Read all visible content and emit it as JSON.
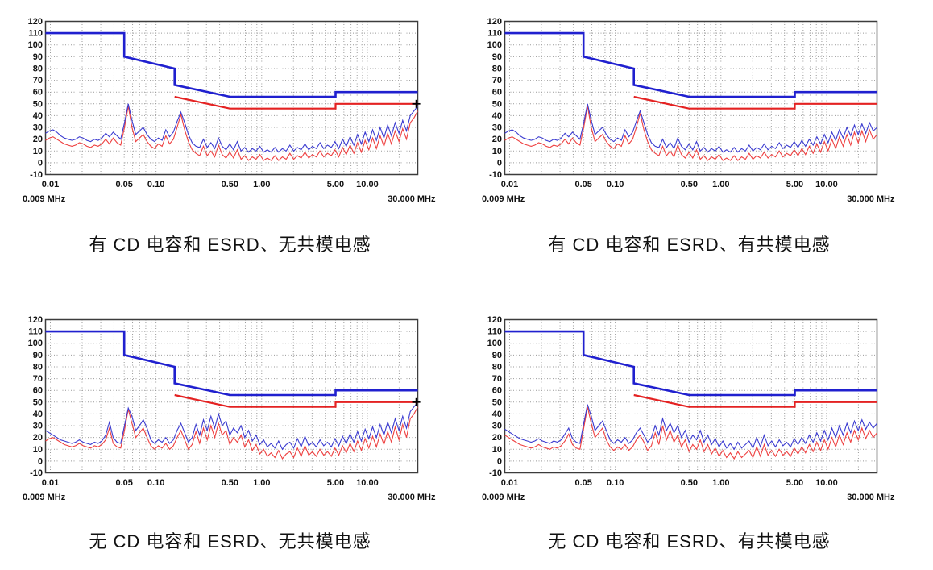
{
  "colors": {
    "limit_blue": "#2020cf",
    "limit_red": "#e42222",
    "trace_blue": "#3b3bd0",
    "trace_red": "#ee4040",
    "grid": "#999999",
    "frame": "#3c3c3c",
    "marker": "#000000",
    "text": "#111111",
    "background": "#ffffff"
  },
  "chart_data": {
    "type": "line",
    "description": "Four conducted EMI spectrum plots (dBuV vs frequency, log scale) comparing CD capacitor / ESRD and common-mode choke configurations",
    "x_axis": {
      "scale": "log",
      "range_mhz": [
        0.009,
        30
      ],
      "left_label": "0.009 MHz",
      "right_label": "30.000 MHz",
      "tick_values": [
        0.01,
        0.05,
        0.1,
        0.5,
        1.0,
        5.0,
        10.0
      ],
      "tick_labels": [
        "0.01",
        "0.05",
        "0.10",
        "0.50",
        "1.00",
        "5.00",
        "10.00"
      ]
    },
    "y_axis": {
      "range_db": [
        -10,
        120
      ],
      "tick_step": 10,
      "tick_labels": [
        "120",
        "110",
        "100",
        "90",
        "80",
        "70",
        "60",
        "50",
        "40",
        "30",
        "20",
        "10",
        "0",
        "-10"
      ]
    },
    "grid": {
      "horizontal_db_lines": [
        0,
        10,
        20,
        30,
        40,
        50,
        60,
        70,
        80,
        90,
        100,
        110
      ],
      "vertical_log_minor": true
    },
    "limit_lines": {
      "quasi_peak": {
        "name": "quasi-peak-limit",
        "color_key": "limit_blue",
        "points_mhz_db": [
          [
            0.009,
            110
          ],
          [
            0.05,
            110
          ],
          [
            0.05,
            90
          ],
          [
            0.15,
            80
          ],
          [
            0.15,
            66
          ],
          [
            0.5,
            56
          ],
          [
            5,
            56
          ],
          [
            5,
            60
          ],
          [
            30,
            60
          ]
        ]
      },
      "average": {
        "name": "average-limit",
        "color_key": "limit_red",
        "points_mhz_db": [
          [
            0.15,
            56
          ],
          [
            0.5,
            46
          ],
          [
            5,
            46
          ],
          [
            5,
            50
          ],
          [
            30,
            50
          ]
        ]
      }
    },
    "trace_sampling": "uniform-log10 over x_axis.range_mhz, 100 samples per trace, values in dB",
    "charts": [
      {
        "id": "top-left",
        "caption": "有 CD 电容和 ESRD、无共模电感",
        "marker": {
          "f_mhz": 29,
          "db": 50,
          "symbol": "+"
        },
        "traces": {
          "peak": {
            "color_key": "trace_blue",
            "samples_db": [
              25,
              27,
              28,
              26,
              23,
              21,
              20,
              19,
              20,
              22,
              21,
              19,
              18,
              20,
              19,
              21,
              25,
              22,
              26,
              23,
              20,
              34,
              50,
              36,
              24,
              27,
              30,
              24,
              20,
              18,
              21,
              19,
              28,
              22,
              26,
              35,
              43,
              34,
              24,
              17,
              14,
              13,
              20,
              13,
              17,
              12,
              21,
              14,
              11,
              16,
              11,
              18,
              10,
              13,
              9,
              12,
              10,
              14,
              9,
              11,
              9,
              13,
              9,
              12,
              10,
              15,
              10,
              13,
              11,
              16,
              11,
              14,
              12,
              17,
              12,
              15,
              13,
              18,
              12,
              20,
              14,
              22,
              15,
              24,
              16,
              26,
              18,
              28,
              19,
              30,
              21,
              32,
              23,
              34,
              25,
              36,
              27,
              40,
              44,
              48
            ]
          },
          "average": {
            "color_key": "trace_red",
            "samples_db": [
              19,
              21,
              22,
              20,
              18,
              16,
              15,
              14,
              15,
              17,
              16,
              14,
              13,
              15,
              14,
              16,
              20,
              16,
              21,
              17,
              15,
              30,
              48,
              30,
              18,
              21,
              24,
              18,
              14,
              12,
              16,
              14,
              23,
              16,
              20,
              30,
              41,
              28,
              18,
              11,
              8,
              6,
              14,
              6,
              10,
              5,
              15,
              7,
              4,
              9,
              4,
              11,
              3,
              6,
              2,
              5,
              3,
              7,
              2,
              4,
              2,
              6,
              2,
              5,
              3,
              8,
              3,
              6,
              4,
              9,
              4,
              7,
              5,
              10,
              5,
              8,
              6,
              11,
              5,
              13,
              7,
              15,
              8,
              17,
              9,
              19,
              11,
              21,
              12,
              23,
              14,
              25,
              16,
              27,
              18,
              29,
              20,
              34,
              38,
              44
            ]
          }
        }
      },
      {
        "id": "top-right",
        "caption": "有 CD 电容和 ESRD、有共模电感",
        "marker": null,
        "traces": {
          "peak": {
            "color_key": "trace_blue",
            "samples_db": [
              25,
              27,
              28,
              26,
              23,
              21,
              20,
              19,
              20,
              22,
              21,
              19,
              18,
              20,
              19,
              21,
              25,
              22,
              26,
              23,
              20,
              34,
              50,
              36,
              24,
              27,
              30,
              24,
              20,
              18,
              21,
              19,
              28,
              22,
              26,
              35,
              44,
              34,
              24,
              17,
              14,
              13,
              20,
              13,
              17,
              12,
              21,
              14,
              11,
              16,
              11,
              18,
              10,
              13,
              9,
              12,
              10,
              14,
              9,
              11,
              9,
              13,
              9,
              12,
              10,
              15,
              10,
              13,
              11,
              16,
              11,
              14,
              12,
              17,
              12,
              15,
              13,
              18,
              13,
              19,
              14,
              20,
              15,
              22,
              16,
              24,
              17,
              26,
              19,
              28,
              21,
              30,
              23,
              32,
              24,
              33,
              25,
              34,
              27,
              30
            ]
          },
          "average": {
            "color_key": "trace_red",
            "samples_db": [
              19,
              21,
              22,
              20,
              18,
              16,
              15,
              14,
              15,
              17,
              16,
              14,
              13,
              15,
              14,
              16,
              20,
              16,
              21,
              17,
              15,
              30,
              48,
              30,
              18,
              21,
              24,
              18,
              14,
              12,
              16,
              14,
              23,
              16,
              20,
              30,
              42,
              28,
              18,
              11,
              8,
              6,
              14,
              6,
              10,
              5,
              15,
              7,
              4,
              9,
              4,
              11,
              3,
              6,
              2,
              5,
              3,
              7,
              2,
              4,
              2,
              6,
              2,
              5,
              3,
              8,
              3,
              6,
              4,
              9,
              4,
              7,
              5,
              10,
              5,
              8,
              6,
              11,
              6,
              12,
              7,
              14,
              8,
              16,
              9,
              18,
              10,
              20,
              12,
              22,
              14,
              24,
              15,
              26,
              17,
              27,
              18,
              28,
              20,
              24
            ]
          }
        }
      },
      {
        "id": "bottom-left",
        "caption": "无 CD 电容和 ESRD、无共模电感",
        "marker": {
          "f_mhz": 29,
          "db": 50,
          "symbol": "+"
        },
        "traces": {
          "peak": {
            "color_key": "trace_blue",
            "samples_db": [
              26,
              24,
              22,
              20,
              18,
              17,
              16,
              15,
              16,
              18,
              16,
              15,
              14,
              16,
              15,
              17,
              22,
              33,
              20,
              16,
              15,
              30,
              45,
              38,
              26,
              30,
              35,
              28,
              18,
              15,
              18,
              16,
              20,
              15,
              18,
              26,
              32,
              24,
              16,
              20,
              31,
              22,
              35,
              26,
              38,
              28,
              40,
              30,
              34,
              22,
              28,
              24,
              30,
              20,
              26,
              17,
              22,
              14,
              18,
              12,
              15,
              11,
              17,
              10,
              14,
              16,
              11,
              19,
              12,
              21,
              13,
              16,
              12,
              18,
              13,
              16,
              12,
              19,
              13,
              21,
              15,
              23,
              16,
              25,
              17,
              27,
              19,
              29,
              20,
              31,
              22,
              33,
              24,
              36,
              26,
              38,
              28,
              42,
              46,
              50
            ]
          },
          "average": {
            "color_key": "trace_red",
            "samples_db": [
              17,
              19,
              20,
              18,
              16,
              14,
              13,
              12,
              13,
              15,
              13,
              12,
              11,
              13,
              12,
              14,
              18,
              28,
              15,
              12,
              11,
              26,
              44,
              32,
              20,
              24,
              28,
              20,
              13,
              10,
              13,
              11,
              15,
              10,
              13,
              20,
              26,
              18,
              10,
              14,
              25,
              15,
              28,
              18,
              30,
              20,
              32,
              22,
              26,
              14,
              20,
              16,
              22,
              12,
              18,
              9,
              14,
              6,
              10,
              4,
              7,
              3,
              9,
              2,
              6,
              8,
              3,
              11,
              4,
              13,
              5,
              8,
              4,
              10,
              5,
              8,
              4,
              11,
              5,
              13,
              7,
              15,
              8,
              17,
              9,
              19,
              11,
              21,
              12,
              23,
              14,
              25,
              16,
              29,
              18,
              31,
              20,
              36,
              40,
              46
            ]
          }
        }
      },
      {
        "id": "bottom-right",
        "caption": "无 CD 电容和 ESRD、有共模电感",
        "marker": null,
        "traces": {
          "peak": {
            "color_key": "trace_blue",
            "samples_db": [
              27,
              25,
              23,
              21,
              19,
              18,
              17,
              16,
              17,
              19,
              17,
              16,
              15,
              17,
              16,
              18,
              23,
              28,
              19,
              16,
              15,
              32,
              48,
              38,
              26,
              30,
              34,
              26,
              18,
              15,
              18,
              16,
              20,
              15,
              18,
              24,
              28,
              22,
              16,
              20,
              30,
              22,
              36,
              26,
              32,
              24,
              30,
              20,
              26,
              16,
              22,
              18,
              26,
              16,
              22,
              14,
              19,
              12,
              17,
              11,
              15,
              10,
              16,
              11,
              14,
              17,
              11,
              20,
              12,
              22,
              13,
              17,
              12,
              18,
              13,
              16,
              12,
              19,
              14,
              20,
              15,
              22,
              16,
              24,
              17,
              26,
              18,
              28,
              20,
              30,
              22,
              32,
              24,
              34,
              26,
              35,
              27,
              33,
              28,
              32
            ]
          },
          "average": {
            "color_key": "trace_red",
            "samples_db": [
              22,
              20,
              18,
              16,
              14,
              13,
              12,
              11,
              12,
              14,
              12,
              11,
              10,
              12,
              11,
              13,
              17,
              23,
              14,
              11,
              10,
              28,
              46,
              32,
              20,
              24,
              28,
              18,
              12,
              9,
              12,
              10,
              14,
              9,
              12,
              18,
              22,
              16,
              9,
              13,
              24,
              14,
              30,
              18,
              26,
              16,
              22,
              12,
              18,
              8,
              14,
              10,
              18,
              8,
              14,
              6,
              11,
              4,
              9,
              3,
              7,
              2,
              8,
              3,
              6,
              9,
              3,
              12,
              4,
              14,
              5,
              9,
              4,
              10,
              5,
              8,
              4,
              11,
              6,
              12,
              7,
              14,
              8,
              16,
              9,
              18,
              10,
              20,
              12,
              22,
              14,
              24,
              16,
              26,
              18,
              28,
              19,
              26,
              20,
              24
            ]
          }
        }
      }
    ]
  }
}
